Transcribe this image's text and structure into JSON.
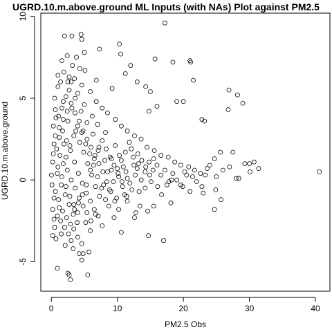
{
  "chart_data": {
    "type": "scatter",
    "title": "UGRD.10.m.above.ground ML Inputs (with NAs) Plot against PM2.5",
    "xlabel": "PM2.5 Obs",
    "ylabel": "UGRD.10.m.above.ground",
    "xlim": [
      -1.6,
      42.2
    ],
    "ylim": [
      -6.8,
      10.2
    ],
    "xticks": [
      0,
      10,
      20,
      30,
      40
    ],
    "yticks": [
      -5,
      0,
      5,
      10
    ],
    "grid": false,
    "legend": "none",
    "series": [
      {
        "marker": "open-circle",
        "color": "#000000",
        "points": [
          [
            2.0,
            8.8
          ],
          [
            3.1,
            8.8
          ],
          [
            4.5,
            8.9
          ],
          [
            4.6,
            8.6
          ],
          [
            10.3,
            8.3
          ],
          [
            17.2,
            9.6
          ],
          [
            7.3,
            8.0
          ],
          [
            10.5,
            7.7
          ],
          [
            15.7,
            7.4
          ],
          [
            18.4,
            7.2
          ],
          [
            21.0,
            7.3
          ],
          [
            21.1,
            7.2
          ],
          [
            1.6,
            7.3
          ],
          [
            2.4,
            7.6
          ],
          [
            3.2,
            7.0
          ],
          [
            3.8,
            7.5
          ],
          [
            5.0,
            7.8
          ],
          [
            12.0,
            7.0
          ],
          [
            1.0,
            6.4
          ],
          [
            2.7,
            6.3
          ],
          [
            4.3,
            6.8
          ],
          [
            5.1,
            6.7
          ],
          [
            6.8,
            6.1
          ],
          [
            11.2,
            6.5
          ],
          [
            13.0,
            6.0
          ],
          [
            21.5,
            6.1
          ],
          [
            26.9,
            5.5
          ],
          [
            28.2,
            5.2
          ],
          [
            29.0,
            4.7
          ],
          [
            26.8,
            4.3
          ],
          [
            9.2,
            5.6
          ],
          [
            14.3,
            5.7
          ],
          [
            15.0,
            5.4
          ],
          [
            19.0,
            4.8
          ],
          [
            20.0,
            4.8
          ],
          [
            22.8,
            3.7
          ],
          [
            23.2,
            3.6
          ],
          [
            14.8,
            4.2
          ],
          [
            16.0,
            4.5
          ],
          [
            27.5,
            1.7
          ],
          [
            29.3,
            1.0
          ],
          [
            30.0,
            1.0
          ],
          [
            30.7,
            1.1
          ],
          [
            31.4,
            0.7
          ],
          [
            30.1,
            0.5
          ],
          [
            40.6,
            0.5
          ],
          [
            28.0,
            0.1
          ],
          [
            28.4,
            0.1
          ],
          [
            25.6,
            1.7
          ],
          [
            24.7,
            1.3
          ],
          [
            24.0,
            0.9
          ],
          [
            23.3,
            0.3
          ],
          [
            22.8,
            -0.4
          ],
          [
            23.0,
            -0.8
          ],
          [
            24.9,
            -0.6
          ],
          [
            25.7,
            -1.2
          ],
          [
            24.7,
            -1.8
          ],
          [
            26.0,
            0.6
          ],
          [
            27.0,
            0.8
          ],
          [
            21.0,
            -0.7
          ],
          [
            20.5,
            0.3
          ],
          [
            19.9,
            -0.4
          ],
          [
            18.2,
            0.0
          ],
          [
            18.1,
            -1.4
          ],
          [
            17.5,
            -0.3
          ],
          [
            16.7,
            -0.9
          ],
          [
            15.5,
            -1.6
          ],
          [
            14.6,
            -1.9
          ],
          [
            13.4,
            -1.6
          ],
          [
            12.6,
            -2.3
          ],
          [
            11.5,
            -1.3
          ],
          [
            10.6,
            -3.2
          ],
          [
            14.7,
            -3.4
          ],
          [
            17.0,
            -3.7
          ],
          [
            12.8,
            -2.0
          ],
          [
            9.9,
            -1.1
          ],
          [
            9.5,
            -2.3
          ],
          [
            8.7,
            -1.6
          ],
          [
            7.7,
            -2.8
          ],
          [
            6.7,
            -2.1
          ],
          [
            5.9,
            -3.1
          ],
          [
            5.7,
            -4.4
          ],
          [
            4.8,
            -4.5
          ],
          [
            4.6,
            -4.9
          ],
          [
            4.2,
            -4.5
          ],
          [
            5.5,
            -5.8
          ],
          [
            3.3,
            -4.2
          ],
          [
            3.0,
            -3.7
          ],
          [
            2.1,
            -4.0
          ],
          [
            1.5,
            -3.3
          ],
          [
            0.9,
            -5.4
          ],
          [
            2.7,
            -5.8
          ],
          [
            2.9,
            -6.1
          ],
          [
            2.5,
            -5.7
          ],
          [
            0.7,
            -3.6
          ],
          [
            0.2,
            -3.4
          ],
          [
            0.5,
            -2.9
          ],
          [
            1.2,
            -1.7
          ],
          [
            0.4,
            -1.1
          ],
          [
            0.1,
            -0.3
          ],
          [
            0.0,
            0.3
          ],
          [
            0.2,
            1.1
          ],
          [
            0.4,
            2.2
          ],
          [
            0.3,
            3.3
          ],
          [
            0.6,
            4.3
          ],
          [
            0.5,
            5.0
          ],
          [
            1.0,
            5.7
          ],
          [
            1.4,
            6.0
          ],
          [
            1.9,
            6.6
          ],
          [
            2.5,
            6.0
          ],
          [
            3.5,
            6.2
          ],
          [
            4.6,
            5.8
          ],
          [
            5.9,
            5.4
          ],
          [
            6.8,
            4.8
          ],
          [
            7.7,
            4.4
          ],
          [
            8.5,
            4.1
          ],
          [
            9.7,
            3.7
          ],
          [
            10.6,
            3.3
          ],
          [
            11.5,
            3.0
          ],
          [
            12.6,
            2.7
          ],
          [
            13.6,
            2.5
          ],
          [
            14.5,
            2.0
          ],
          [
            15.6,
            1.8
          ],
          [
            16.6,
            1.5
          ],
          [
            17.7,
            1.4
          ],
          [
            18.7,
            1.1
          ],
          [
            19.6,
            0.9
          ],
          [
            20.8,
            0.8
          ],
          [
            21.7,
            0.6
          ],
          [
            22.6,
            0.4
          ],
          [
            13.2,
            1.0
          ],
          [
            14.2,
            0.5
          ],
          [
            15.1,
            -0.1
          ],
          [
            16.1,
            -0.4
          ],
          [
            12.2,
            -0.6
          ],
          [
            11.1,
            -0.9
          ],
          [
            10.2,
            0.2
          ],
          [
            9.1,
            0.6
          ],
          [
            8.1,
            1.2
          ],
          [
            7.2,
            2.0
          ],
          [
            6.3,
            2.8
          ],
          [
            5.4,
            3.5
          ],
          [
            4.5,
            4.2
          ],
          [
            3.6,
            5.0
          ],
          [
            2.7,
            5.5
          ],
          [
            1.8,
            4.8
          ],
          [
            1.1,
            3.9
          ],
          [
            1.7,
            3.0
          ],
          [
            2.3,
            2.4
          ],
          [
            2.9,
            1.8
          ],
          [
            3.5,
            1.1
          ],
          [
            4.1,
            0.4
          ],
          [
            4.7,
            -0.2
          ],
          [
            5.3,
            -0.8
          ],
          [
            5.9,
            -1.3
          ],
          [
            6.5,
            -1.8
          ],
          [
            7.1,
            -2.2
          ],
          [
            3.9,
            -2.6
          ],
          [
            3.3,
            -2.1
          ],
          [
            2.7,
            -1.5
          ],
          [
            2.1,
            -0.9
          ],
          [
            1.5,
            -0.3
          ],
          [
            0.9,
            0.4
          ],
          [
            1.3,
            1.5
          ],
          [
            1.9,
            2.2
          ],
          [
            2.5,
            3.6
          ],
          [
            3.1,
            4.4
          ],
          [
            3.7,
            3.0
          ],
          [
            4.3,
            2.3
          ],
          [
            4.9,
            1.7
          ],
          [
            5.5,
            1.0
          ],
          [
            6.1,
            0.3
          ],
          [
            6.7,
            -0.4
          ],
          [
            7.3,
            -1.0
          ],
          [
            7.9,
            -0.3
          ],
          [
            8.5,
            0.5
          ],
          [
            9.1,
            1.3
          ],
          [
            9.7,
            2.1
          ],
          [
            10.3,
            1.5
          ],
          [
            10.9,
            0.8
          ],
          [
            11.5,
            0.1
          ],
          [
            12.1,
            1.9
          ],
          [
            12.7,
            0.3
          ],
          [
            13.3,
            -0.7
          ],
          [
            8.2,
            2.9
          ],
          [
            7.0,
            3.4
          ],
          [
            6.2,
            3.9
          ],
          [
            5.0,
            4.6
          ],
          [
            4.0,
            5.3
          ],
          [
            3.0,
            6.0
          ],
          [
            2.2,
            5.1
          ],
          [
            1.6,
            4.4
          ],
          [
            1.2,
            2.6
          ],
          [
            0.8,
            1.9
          ],
          [
            0.6,
            -0.7
          ],
          [
            0.9,
            -2.2
          ],
          [
            1.4,
            -2.5
          ],
          [
            2.0,
            -2.9
          ],
          [
            2.6,
            -3.3
          ],
          [
            3.4,
            -3.0
          ],
          [
            4.0,
            -3.5
          ],
          [
            4.6,
            -3.9
          ],
          [
            5.2,
            -2.6
          ],
          [
            6.0,
            -2.5
          ],
          [
            1.8,
            1.0
          ],
          [
            2.4,
            0.6
          ],
          [
            3.0,
            0.0
          ],
          [
            3.6,
            -0.5
          ],
          [
            4.2,
            -1.1
          ],
          [
            4.8,
            -1.6
          ],
          [
            5.4,
            -2.0
          ],
          [
            2.2,
            1.4
          ],
          [
            2.8,
            2.1
          ],
          [
            3.4,
            2.7
          ],
          [
            4.0,
            3.3
          ],
          [
            4.6,
            2.9
          ],
          [
            5.2,
            2.2
          ],
          [
            5.8,
            1.6
          ],
          [
            6.4,
            0.9
          ],
          [
            7.0,
            0.2
          ],
          [
            7.6,
            -0.5
          ],
          [
            8.2,
            -1.2
          ],
          [
            8.8,
            -0.6
          ],
          [
            9.4,
            -0.1
          ],
          [
            10.0,
            0.7
          ],
          [
            10.6,
            1.2
          ],
          [
            11.2,
            1.7
          ],
          [
            11.8,
            2.3
          ],
          [
            12.4,
            1.4
          ],
          [
            13.0,
            0.7
          ],
          [
            13.6,
            0.0
          ],
          [
            14.2,
            -0.5
          ],
          [
            14.8,
            1.1
          ],
          [
            15.4,
            0.6
          ],
          [
            16.0,
            0.9
          ],
          [
            16.6,
            0.3
          ],
          [
            17.2,
            0.6
          ],
          [
            17.8,
            -0.1
          ],
          [
            18.4,
            0.4
          ],
          [
            19.0,
            0.0
          ],
          [
            19.6,
            -0.3
          ],
          [
            20.2,
            0.5
          ],
          [
            21.4,
            0.2
          ],
          [
            22.0,
            -0.1
          ],
          [
            23.6,
            0.7
          ],
          [
            25.0,
            0.2
          ],
          [
            1.0,
            0.8
          ],
          [
            1.6,
            0.2
          ],
          [
            2.2,
            -0.4
          ],
          [
            2.8,
            -1.0
          ],
          [
            3.4,
            -1.5
          ],
          [
            4.0,
            -2.0
          ],
          [
            1.2,
            3.2
          ],
          [
            1.8,
            3.7
          ],
          [
            2.4,
            4.2
          ],
          [
            3.0,
            4.7
          ],
          [
            3.6,
            4.1
          ],
          [
            4.2,
            3.6
          ],
          [
            4.8,
            3.0
          ],
          [
            5.4,
            2.5
          ],
          [
            6.0,
            2.0
          ],
          [
            6.6,
            1.5
          ],
          [
            7.2,
            1.0
          ],
          [
            7.8,
            0.5
          ],
          [
            8.4,
            -0.1
          ],
          [
            9.0,
            -0.7
          ],
          [
            9.6,
            -1.3
          ],
          [
            10.2,
            -1.8
          ],
          [
            10.8,
            -0.4
          ],
          [
            11.4,
            -1.0
          ],
          [
            0.6,
            2.7
          ],
          [
            0.7,
            3.8
          ],
          [
            0.3,
            1.6
          ],
          [
            0.2,
            -1.8
          ],
          [
            0.4,
            -2.4
          ],
          [
            1.1,
            -1.2
          ],
          [
            1.7,
            -1.9
          ],
          [
            2.3,
            -2.3
          ],
          [
            2.9,
            -2.7
          ],
          [
            3.5,
            -1.8
          ],
          [
            4.1,
            -1.4
          ],
          [
            4.7,
            -0.9
          ],
          [
            5.3,
            -0.3
          ],
          [
            5.9,
            0.6
          ],
          [
            6.5,
            1.3
          ],
          [
            7.1,
            1.8
          ],
          [
            7.7,
            2.4
          ],
          [
            8.3,
            1.9
          ],
          [
            8.9,
            1.4
          ],
          [
            9.5,
            0.9
          ],
          [
            10.1,
            0.4
          ],
          [
            10.7,
            -0.1
          ],
          [
            11.3,
            0.5
          ],
          [
            11.9,
            -0.2
          ],
          [
            12.5,
            0.9
          ],
          [
            13.1,
            1.6
          ],
          [
            13.7,
            1.2
          ],
          [
            14.3,
            0.8
          ],
          [
            14.9,
            0.3
          ],
          [
            15.5,
            1.3
          ]
        ]
      }
    ]
  }
}
